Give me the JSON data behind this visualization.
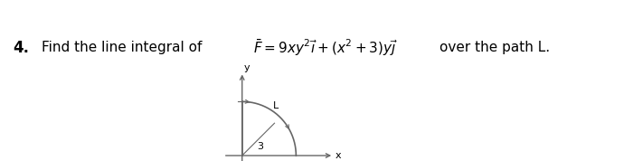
{
  "bg_color": "#ffffff",
  "text_color": "#000000",
  "curve_color": "#666666",
  "axis_color": "#666666",
  "axis_label_x": "x",
  "axis_label_y": "y",
  "path_label": "L",
  "path_number_label": "3",
  "fig_width": 7.0,
  "fig_height": 1.78,
  "dpi": 100
}
